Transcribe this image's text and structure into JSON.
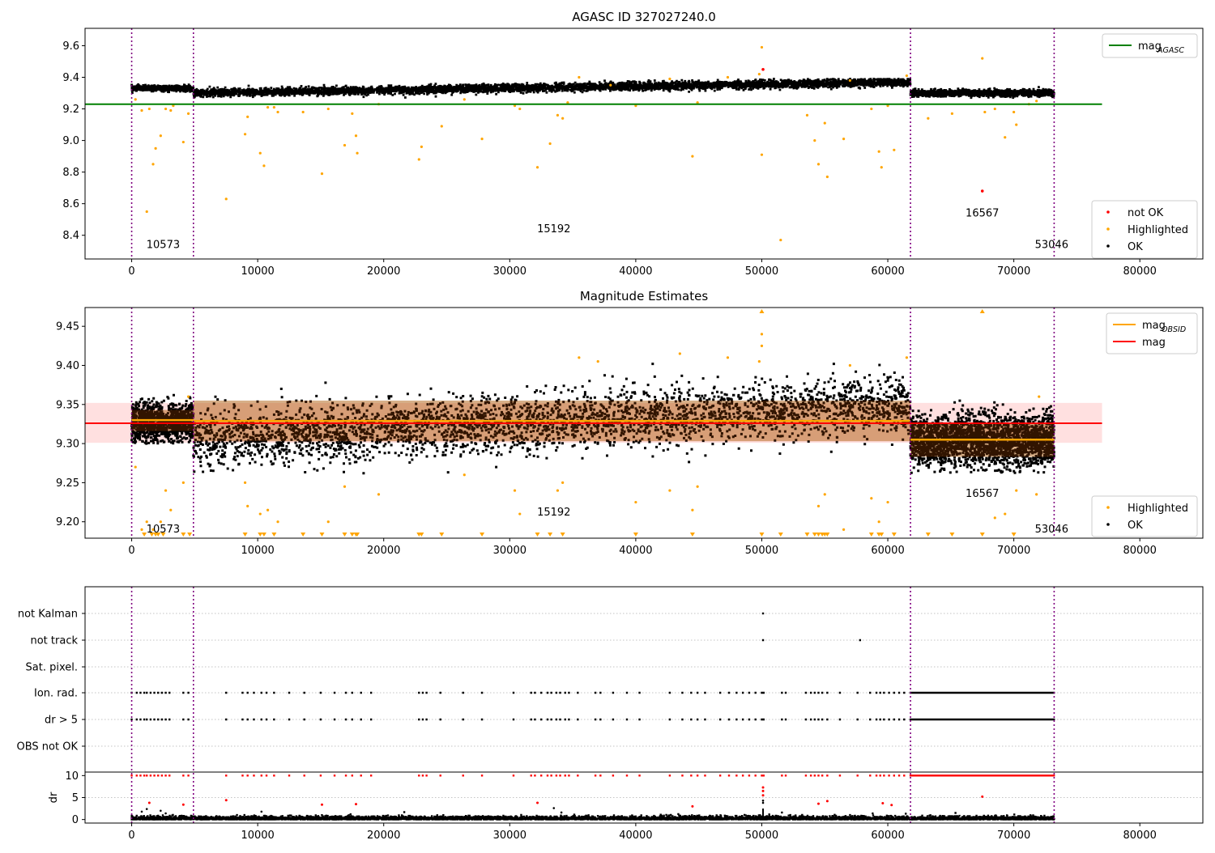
{
  "chart_data": [
    {
      "type": "scatter",
      "title": "AGASC ID 327027240.0",
      "xlim": [
        -3700,
        85000
      ],
      "ylim": [
        8.25,
        9.71
      ],
      "xticks": [
        0,
        10000,
        20000,
        30000,
        40000,
        50000,
        60000,
        70000,
        80000
      ],
      "yticks": [
        8.4,
        8.6,
        8.8,
        9.0,
        9.2,
        9.4,
        9.6
      ],
      "ytick_labels": [
        "8.4",
        "8.6",
        "8.8",
        "9.0",
        "9.2",
        "9.4",
        "9.6"
      ],
      "obsid_boundaries": [
        0,
        4900,
        61800,
        73200
      ],
      "obsid_labels": [
        {
          "x": 2500,
          "y": 8.32,
          "text": "10573"
        },
        {
          "x": 33500,
          "y": 8.42,
          "text": "15192"
        },
        {
          "x": 67500,
          "y": 8.52,
          "text": "16567"
        },
        {
          "x": 73000,
          "y": 8.32,
          "text": "53046"
        }
      ],
      "hlines": [
        {
          "name": "mag",
          "name_sub": "AGASC",
          "y": 9.23,
          "x0": -3700,
          "x1": 77000,
          "color": "#008000"
        }
      ],
      "ok_bands": [
        {
          "x0": 0,
          "x1": 4900,
          "ymin": 9.3,
          "ymax": 9.36,
          "center": 9.33,
          "spread": 0.008
        },
        {
          "x0": 4900,
          "x1": 61800,
          "ymin": 9.27,
          "ymax": 9.39,
          "center0": 9.3,
          "center1": 9.37,
          "spread": 0.012
        },
        {
          "x0": 61800,
          "x1": 73200,
          "ymin": 9.27,
          "ymax": 9.34,
          "center": 9.3,
          "spread": 0.01
        }
      ],
      "highlighted_points": [
        [
          300,
          9.26
        ],
        [
          800,
          9.19
        ],
        [
          1200,
          8.55
        ],
        [
          1400,
          9.2
        ],
        [
          1700,
          8.85
        ],
        [
          1900,
          8.95
        ],
        [
          2300,
          9.03
        ],
        [
          2700,
          9.2
        ],
        [
          3100,
          9.19
        ],
        [
          3300,
          9.22
        ],
        [
          4100,
          8.99
        ],
        [
          4500,
          9.17
        ],
        [
          7500,
          8.63
        ],
        [
          9000,
          9.04
        ],
        [
          9200,
          9.15
        ],
        [
          10200,
          8.92
        ],
        [
          10500,
          8.84
        ],
        [
          10800,
          9.21
        ],
        [
          11300,
          9.21
        ],
        [
          11600,
          9.18
        ],
        [
          13600,
          9.18
        ],
        [
          15100,
          8.79
        ],
        [
          15600,
          9.2
        ],
        [
          16900,
          8.97
        ],
        [
          17500,
          9.17
        ],
        [
          17800,
          9.03
        ],
        [
          17900,
          8.92
        ],
        [
          19600,
          9.23
        ],
        [
          22800,
          8.88
        ],
        [
          23000,
          8.96
        ],
        [
          24600,
          9.09
        ],
        [
          26400,
          9.26
        ],
        [
          27800,
          9.01
        ],
        [
          30400,
          9.22
        ],
        [
          30800,
          9.2
        ],
        [
          32200,
          8.83
        ],
        [
          33200,
          8.98
        ],
        [
          33800,
          9.16
        ],
        [
          34200,
          9.14
        ],
        [
          34600,
          9.24
        ],
        [
          35500,
          9.4
        ],
        [
          38000,
          9.35
        ],
        [
          40000,
          9.22
        ],
        [
          42700,
          9.39
        ],
        [
          44500,
          8.9
        ],
        [
          44900,
          9.24
        ],
        [
          47300,
          9.4
        ],
        [
          49800,
          9.42
        ],
        [
          50000,
          9.59
        ],
        [
          50000,
          8.91
        ],
        [
          51500,
          8.37
        ],
        [
          53600,
          9.16
        ],
        [
          54200,
          9.0
        ],
        [
          54500,
          8.85
        ],
        [
          55000,
          9.11
        ],
        [
          55200,
          8.77
        ],
        [
          56500,
          9.01
        ],
        [
          57000,
          9.38
        ],
        [
          58700,
          9.2
        ],
        [
          59300,
          8.93
        ],
        [
          59500,
          8.83
        ],
        [
          60000,
          9.22
        ],
        [
          60500,
          8.94
        ],
        [
          61500,
          9.41
        ],
        [
          63200,
          9.14
        ],
        [
          65100,
          9.17
        ],
        [
          67500,
          9.52
        ],
        [
          67700,
          9.18
        ],
        [
          68500,
          9.2
        ],
        [
          69300,
          9.02
        ],
        [
          70000,
          9.18
        ],
        [
          70200,
          9.1
        ],
        [
          71200,
          9.23
        ],
        [
          71800,
          9.25
        ]
      ],
      "not_ok_points": [
        [
          50100,
          9.45
        ],
        [
          67500,
          8.68
        ]
      ],
      "legend_upper": {
        "position": "upper right",
        "entries": [
          {
            "label": "mag",
            "sub": "AGASC",
            "marker": "line",
            "color": "#008000"
          }
        ]
      },
      "legend_lower": {
        "position": "lower right",
        "entries": [
          {
            "label": "not OK",
            "color": "#ff0000"
          },
          {
            "label": "Highlighted",
            "color": "#ffa500"
          },
          {
            "label": "OK",
            "color": "#000000"
          }
        ]
      }
    },
    {
      "type": "scatter",
      "title": "Magnitude Estimates",
      "xlim": [
        -3700,
        85000
      ],
      "ylim": [
        9.179,
        9.474
      ],
      "xticks": [
        0,
        10000,
        20000,
        30000,
        40000,
        50000,
        60000,
        70000,
        80000
      ],
      "yticks": [
        9.2,
        9.25,
        9.3,
        9.35,
        9.4,
        9.45
      ],
      "ytick_labels": [
        "9.20",
        "9.25",
        "9.30",
        "9.35",
        "9.40",
        "9.45"
      ],
      "obsid_boundaries": [
        0,
        4900,
        61800,
        73200
      ],
      "obsid_labels": [
        {
          "x": 2500,
          "y": 9.186,
          "text": "10573"
        },
        {
          "x": 33500,
          "y": 9.208,
          "text": "15192"
        },
        {
          "x": 67500,
          "y": 9.232,
          "text": "16567"
        },
        {
          "x": 73000,
          "y": 9.186,
          "text": "53046"
        }
      ],
      "mag": {
        "name": "mag",
        "y": 9.326,
        "band": [
          9.301,
          9.352
        ],
        "x0": -3700,
        "x1": 77000,
        "color": "#ff0000"
      },
      "mag_obsid": {
        "name": "mag",
        "name_sub": "OBSID",
        "color": "#ffa500",
        "segments": [
          {
            "x0": 0,
            "x1": 4900,
            "y": 9.33,
            "band": [
              9.316,
              9.343
            ]
          },
          {
            "x0": 4900,
            "x1": 61800,
            "y": 9.329,
            "band": [
              9.303,
              9.355
            ]
          },
          {
            "x0": 61800,
            "x1": 73200,
            "y": 9.305,
            "band": [
              9.283,
              9.327
            ]
          }
        ]
      },
      "ok_bands": [
        {
          "x0": 0,
          "x1": 4900,
          "ymin": 9.3,
          "ymax": 9.368,
          "center": 9.328,
          "spread": 0.012
        },
        {
          "x0": 4900,
          "x1": 61800,
          "ymin": 9.262,
          "ymax": 9.405,
          "center0": 9.305,
          "center1": 9.35,
          "spread": 0.018
        },
        {
          "x0": 61800,
          "x1": 73200,
          "ymin": 9.262,
          "ymax": 9.355,
          "center": 9.304,
          "spread": 0.016
        }
      ],
      "highlighted_points": [
        [
          300,
          9.27
        ],
        [
          800,
          9.19
        ],
        [
          1200,
          9.2
        ],
        [
          1700,
          9.19
        ],
        [
          2300,
          9.2
        ],
        [
          2700,
          9.24
        ],
        [
          3100,
          9.215
        ],
        [
          4100,
          9.25
        ],
        [
          4500,
          9.36
        ],
        [
          9000,
          9.25
        ],
        [
          9200,
          9.22
        ],
        [
          10200,
          9.21
        ],
        [
          10800,
          9.215
        ],
        [
          11600,
          9.2
        ],
        [
          15600,
          9.2
        ],
        [
          16900,
          9.245
        ],
        [
          19600,
          9.235
        ],
        [
          26400,
          9.26
        ],
        [
          30400,
          9.24
        ],
        [
          30800,
          9.21
        ],
        [
          33800,
          9.24
        ],
        [
          34200,
          9.25
        ],
        [
          35500,
          9.41
        ],
        [
          37000,
          9.405
        ],
        [
          40000,
          9.225
        ],
        [
          42700,
          9.24
        ],
        [
          43500,
          9.415
        ],
        [
          44500,
          9.215
        ],
        [
          44900,
          9.245
        ],
        [
          47300,
          9.41
        ],
        [
          49800,
          9.405
        ],
        [
          50000,
          9.44
        ],
        [
          50000,
          9.425
        ],
        [
          54500,
          9.22
        ],
        [
          55000,
          9.235
        ],
        [
          56500,
          9.19
        ],
        [
          57000,
          9.4
        ],
        [
          58700,
          9.23
        ],
        [
          59300,
          9.2
        ],
        [
          60000,
          9.225
        ],
        [
          61500,
          9.41
        ],
        [
          68500,
          9.205
        ],
        [
          69300,
          9.21
        ],
        [
          70200,
          9.24
        ],
        [
          71800,
          9.235
        ],
        [
          72000,
          9.36
        ]
      ],
      "highlighted_below": [
        1000,
        1600,
        1900,
        2100,
        2500,
        4100,
        4600,
        9000,
        10200,
        10500,
        11300,
        13600,
        15100,
        16900,
        17500,
        17800,
        17900,
        22800,
        23000,
        24600,
        27800,
        32200,
        33200,
        34200,
        40000,
        44500,
        50000,
        51500,
        53600,
        54200,
        54500,
        54800,
        55000,
        55200,
        58700,
        59300,
        59500,
        60500,
        63200,
        65100,
        67500,
        70000
      ],
      "highlighted_above": [
        50000,
        67500
      ],
      "legend_upper": {
        "position": "upper right",
        "entries": [
          {
            "label": "mag",
            "sub": "OBSID",
            "marker": "line",
            "color": "#ffa500"
          },
          {
            "label": "mag",
            "marker": "line",
            "color": "#ff0000"
          }
        ]
      },
      "legend_lower": {
        "position": "lower right",
        "entries": [
          {
            "label": "Highlighted",
            "color": "#ffa500"
          },
          {
            "label": "OK",
            "color": "#000000"
          }
        ]
      }
    },
    {
      "type": "scatter",
      "title": "",
      "xlim": [
        -3700,
        85000
      ],
      "xticks": [
        0,
        10000,
        20000,
        30000,
        40000,
        50000,
        60000,
        70000,
        80000
      ],
      "flag_labels": [
        "not Kalman",
        "not track",
        "Sat. pixel.",
        "Ion. rad.",
        "dr > 5",
        "OBS not OK"
      ],
      "obsid_boundaries": [
        0,
        4900,
        61800,
        73200
      ],
      "not_kalman_x": [
        50100
      ],
      "not_track_x": [
        50100,
        57800
      ],
      "flag_runs_x": [
        0,
        400,
        700,
        1000,
        1200,
        1500,
        1800,
        2100,
        2400,
        2700,
        3000,
        4100,
        4500,
        7500,
        8800,
        9200,
        9700,
        10300,
        10700,
        11300,
        12500,
        13700,
        15000,
        16100,
        17000,
        17500,
        18200,
        19000,
        22800,
        23100,
        23400,
        24500,
        26300,
        27800,
        30300,
        31700,
        32000,
        32500,
        33000,
        33300,
        33700,
        34000,
        34400,
        34700,
        35400,
        36800,
        37200,
        38200,
        39300,
        40300,
        42700,
        43700,
        44400,
        44900,
        45500,
        46700,
        47400,
        48000,
        48500,
        49000,
        49500,
        50000,
        50150,
        51600,
        51900,
        53500,
        53900,
        54200,
        54500,
        54800,
        55200,
        56200,
        57600,
        58600,
        59100,
        59400,
        59700,
        60100,
        60500,
        60900,
        61300
      ],
      "dense_flag_range": [
        61800,
        73200
      ],
      "dr_panel": {
        "ylabel": "dr",
        "yticks": [
          0,
          5,
          10
        ],
        "ylim": [
          -0.8,
          10.8
        ],
        "red_points": [
          [
            1400,
            3.8
          ],
          [
            4100,
            3.4
          ],
          [
            7500,
            4.4
          ],
          [
            15100,
            3.4
          ],
          [
            17800,
            3.5
          ],
          [
            32200,
            3.8
          ],
          [
            44500,
            3.0
          ],
          [
            50100,
            5.5
          ],
          [
            50100,
            6.5
          ],
          [
            50100,
            7.3
          ],
          [
            54500,
            3.6
          ],
          [
            55200,
            4.2
          ],
          [
            59600,
            3.7
          ],
          [
            60300,
            3.3
          ],
          [
            67500,
            5.2
          ]
        ],
        "black_high_points": [
          [
            800,
            1.8
          ],
          [
            1200,
            2.4
          ],
          [
            2300,
            2.0
          ],
          [
            2700,
            1.4
          ],
          [
            10300,
            1.8
          ],
          [
            33500,
            2.6
          ],
          [
            34100,
            1.6
          ],
          [
            50100,
            3.8
          ],
          [
            50100,
            4.3
          ],
          [
            51600,
            1.6
          ],
          [
            58800,
            1.4
          ]
        ]
      }
    }
  ]
}
